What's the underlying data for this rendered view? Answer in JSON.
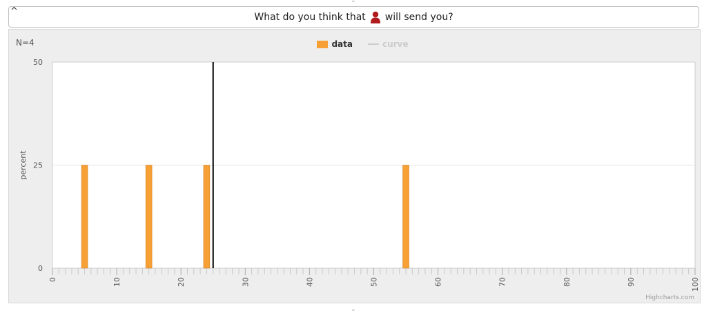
{
  "question": {
    "before": "What do you think that",
    "after": "will send you?",
    "person_icon": "person-icon",
    "person_color": "#b01c1c"
  },
  "collapse_label": "^",
  "chart_data": {
    "type": "bar",
    "n_label": "N=4",
    "legend": [
      {
        "name": "data",
        "color": "#f7a035",
        "active": true
      },
      {
        "name": "curve",
        "color": "#cccccc",
        "active": false
      }
    ],
    "ylabel": "percent",
    "ylim": [
      0,
      50
    ],
    "yticks": [
      0,
      25,
      50
    ],
    "xlim": [
      0,
      100
    ],
    "xticks": [
      0,
      10,
      20,
      30,
      40,
      50,
      60,
      70,
      80,
      90,
      100
    ],
    "bars": [
      {
        "x": 5,
        "value": 25
      },
      {
        "x": 15,
        "value": 25
      },
      {
        "x": 24,
        "value": 25
      },
      {
        "x": 55,
        "value": 25
      }
    ],
    "marker_line_x": 25,
    "bar_color": "#f7a035",
    "credit": "Highcharts.com"
  }
}
